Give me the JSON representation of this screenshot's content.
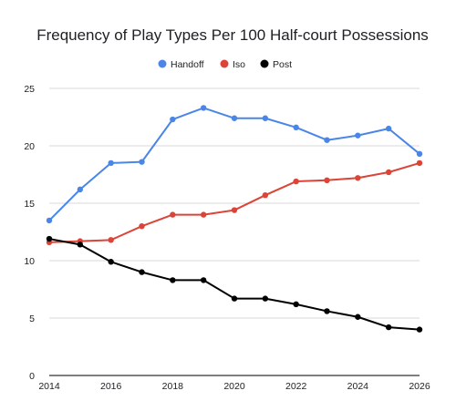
{
  "chart_data": {
    "type": "line",
    "title": "Frequency of Play Types Per 100 Half-court Possessions",
    "xlabel": "",
    "ylabel": "",
    "x": [
      2014,
      2015,
      2016,
      2017,
      2018,
      2019,
      2020,
      2021,
      2022,
      2023,
      2024,
      2025,
      2026
    ],
    "xlim": [
      2014,
      2026
    ],
    "ylim": [
      0,
      25
    ],
    "x_ticks": [
      "2014",
      "2016",
      "2018",
      "2020",
      "2022",
      "2024",
      "2026"
    ],
    "y_ticks": [
      "0",
      "5",
      "10",
      "15",
      "20",
      "25"
    ],
    "grid": true,
    "legend_position": "top",
    "series": [
      {
        "name": "Handoff",
        "color": "#4a86e8",
        "values": [
          13.5,
          16.2,
          18.5,
          18.6,
          22.3,
          23.3,
          22.4,
          22.4,
          21.6,
          20.5,
          20.9,
          21.5,
          19.3
        ]
      },
      {
        "name": "Iso",
        "color": "#db4437",
        "values": [
          11.6,
          11.7,
          11.8,
          13.0,
          14.0,
          14.0,
          14.4,
          15.7,
          16.9,
          17.0,
          17.2,
          17.7,
          18.5
        ]
      },
      {
        "name": "Post",
        "color": "#000000",
        "values": [
          11.9,
          11.4,
          9.9,
          9.0,
          8.3,
          8.3,
          6.7,
          6.7,
          6.2,
          5.6,
          5.1,
          4.2,
          4.0
        ]
      }
    ]
  }
}
